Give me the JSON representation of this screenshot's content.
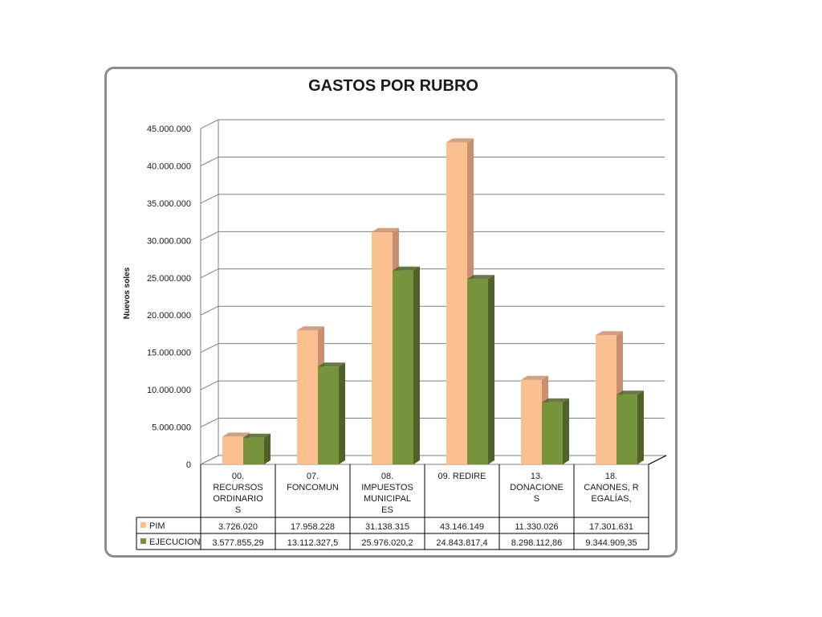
{
  "chart_data": {
    "type": "bar",
    "title": "GASTOS POR RUBRO",
    "ylabel": "Nuevos soles",
    "xlabel": "",
    "ylim": [
      0,
      45000000
    ],
    "y_ticks": [
      "0",
      "5.000.000",
      "10.000.000",
      "15.000.000",
      "20.000.000",
      "25.000.000",
      "30.000.000",
      "35.000.000",
      "40.000.000",
      "45.000.000"
    ],
    "categories": [
      [
        "00.",
        "RECURSOS",
        "ORDINARIO",
        "S"
      ],
      [
        "07.",
        "FONCOMUN"
      ],
      [
        "08.",
        "IMPUESTOS",
        "MUNICIPAL",
        "ES"
      ],
      [
        "09. REDIRE"
      ],
      [
        "13.",
        "DONACIONE",
        "S"
      ],
      [
        "18.",
        "CANONES, R",
        "EGALÍAS,"
      ]
    ],
    "series": [
      {
        "name": "PIM",
        "color": "#FAC090",
        "side_color": "#C89070",
        "values": [
          3726020,
          17958228,
          31138315,
          43146149,
          11330026,
          17301631
        ],
        "labels": [
          "3.726.020",
          "17.958.228",
          "31.138.315",
          "43.146.149",
          "11.330.026",
          "17.301.631"
        ]
      },
      {
        "name": "EJECUCION",
        "color": "#77933C",
        "side_color": "#4F6228",
        "values": [
          3577855.29,
          13112327.5,
          25976020.2,
          24843817.4,
          8298112.86,
          9344909.35
        ],
        "labels": [
          "3.577.855,29",
          "13.112.327,5",
          "25.976.020,2",
          "24.843.817,4",
          "8.298.112,86",
          "9.344.909,35"
        ]
      }
    ],
    "grid": true,
    "legend": "data-table"
  }
}
